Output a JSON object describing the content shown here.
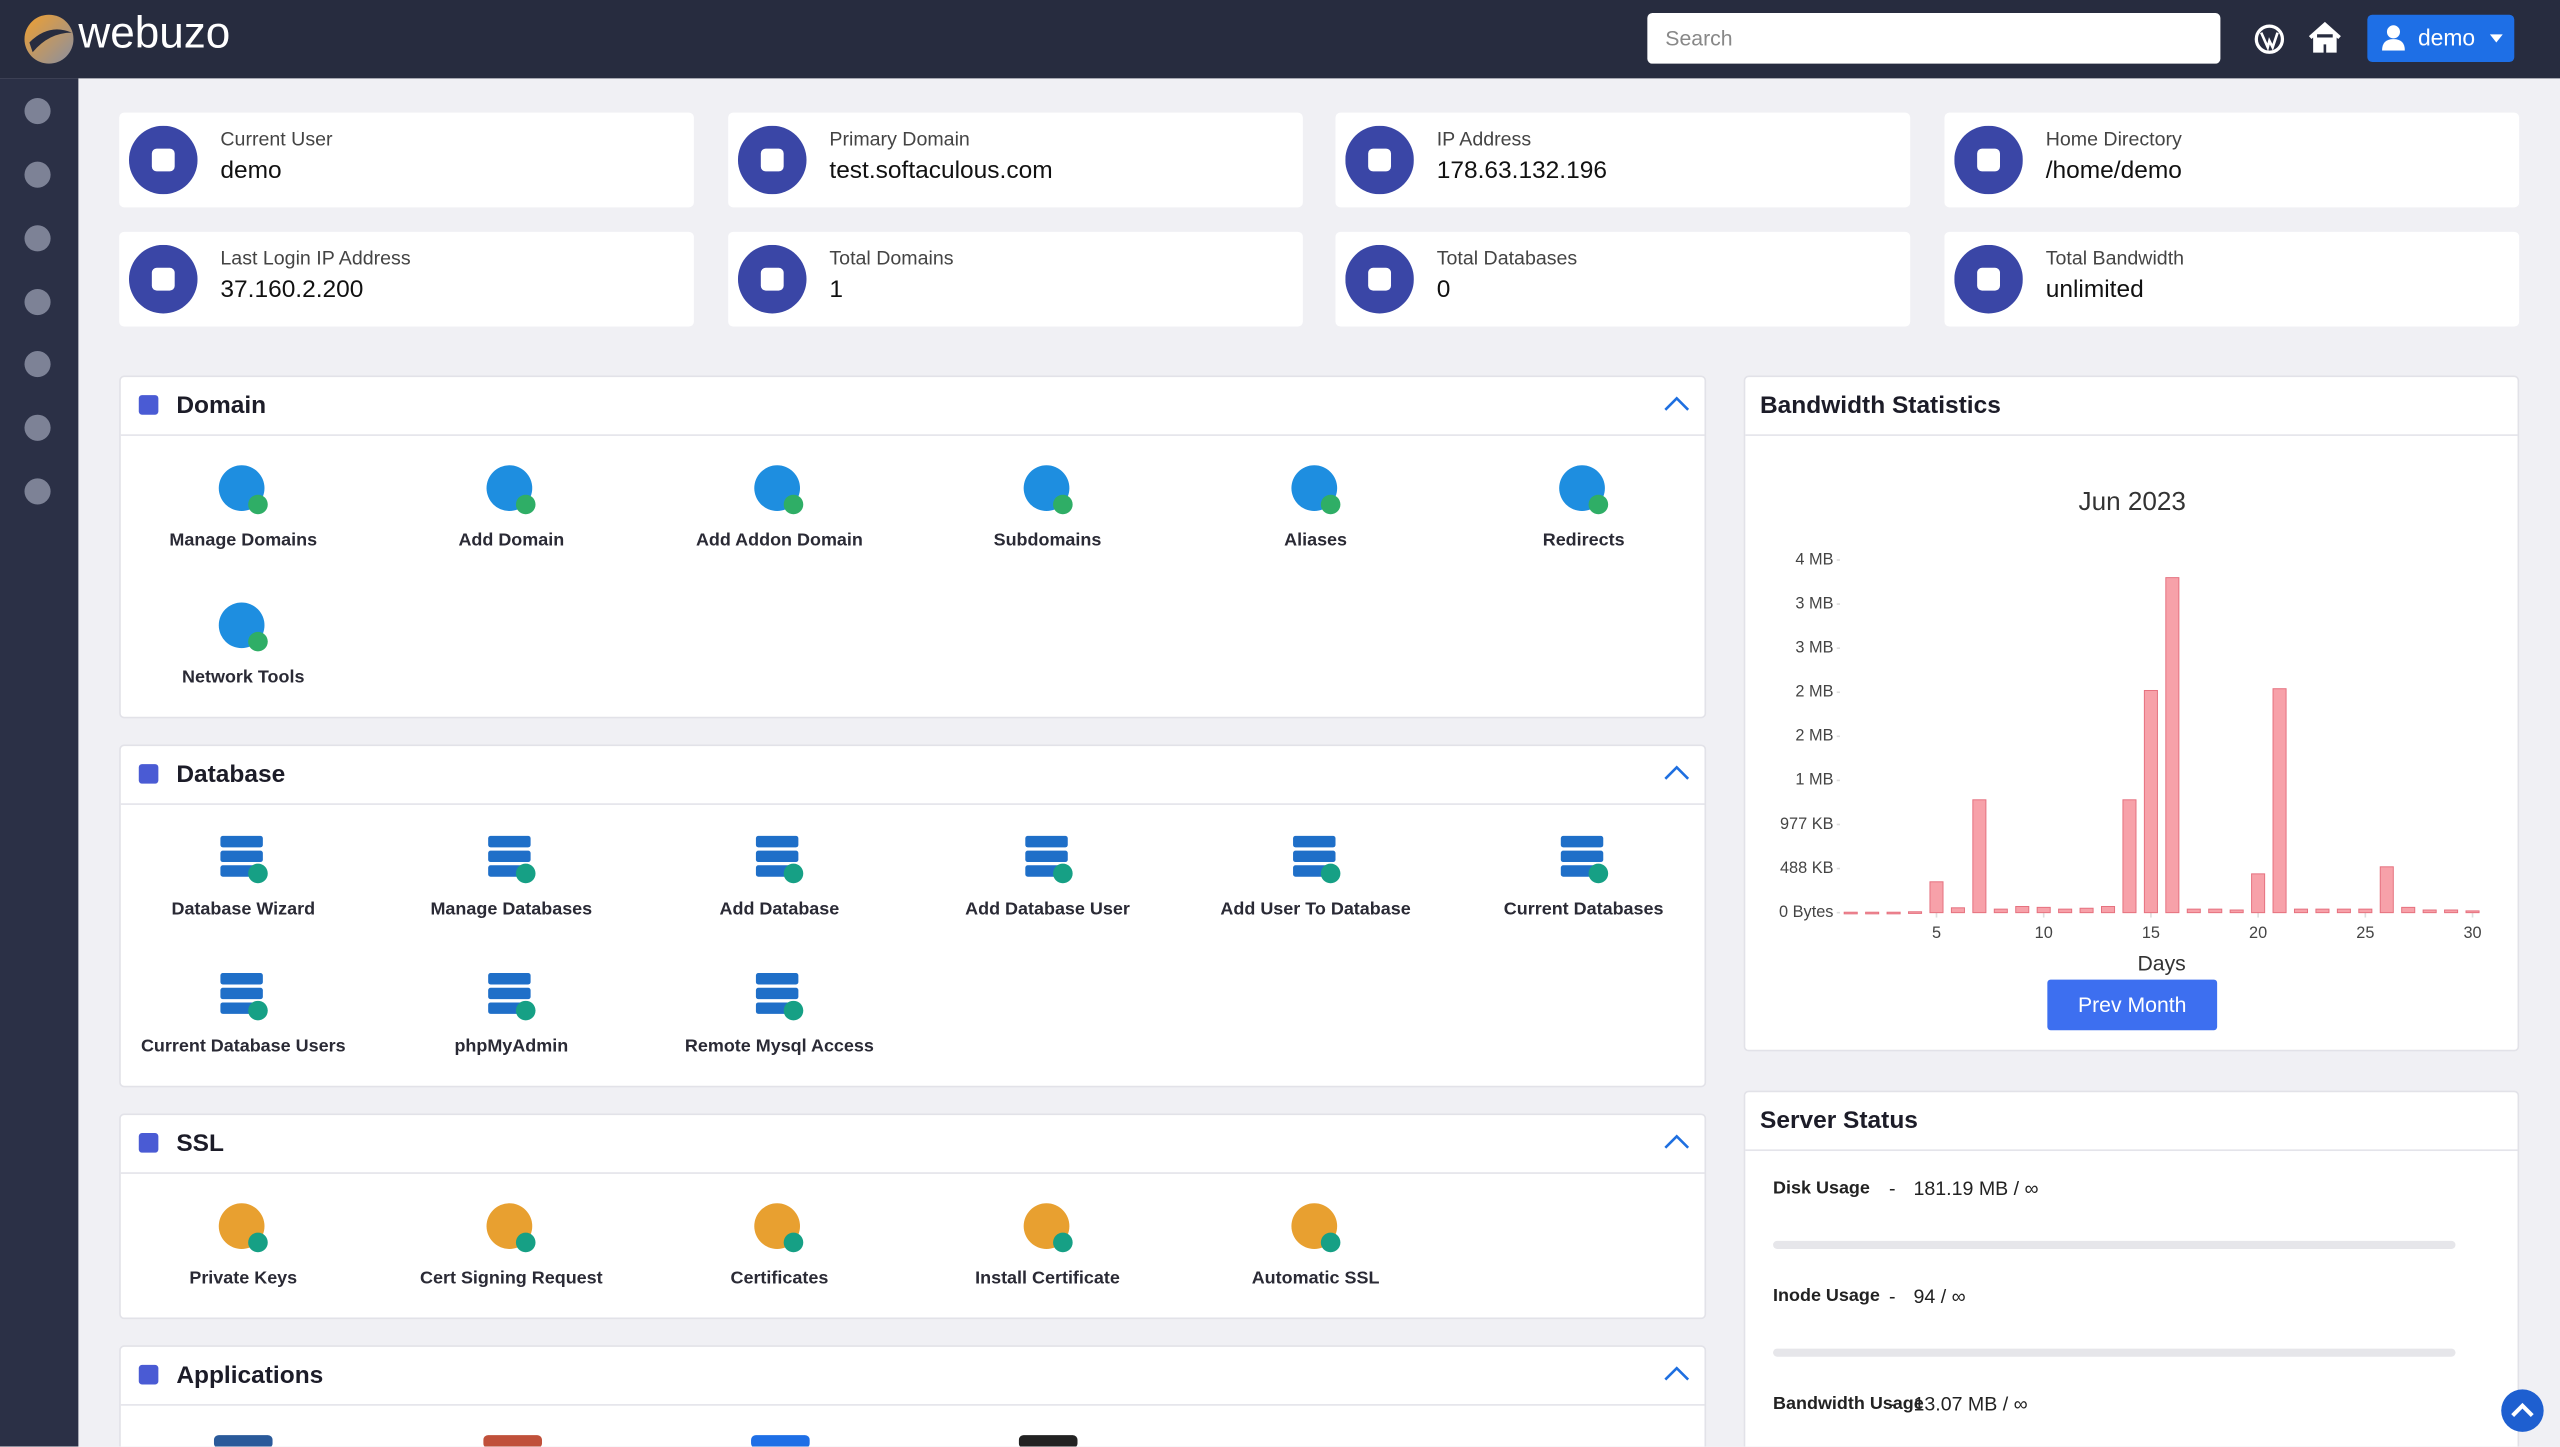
{
  "header": {
    "logo": "webuzo",
    "search_placeholder": "Search",
    "user": "demo"
  },
  "info_cards": [
    {
      "label": "Current User",
      "value": "demo"
    },
    {
      "label": "Primary Domain",
      "value": "test.softaculous.com"
    },
    {
      "label": "IP Address",
      "value": "178.63.132.196"
    },
    {
      "label": "Home Directory",
      "value": "/home/demo"
    },
    {
      "label": "Last Login IP Address",
      "value": "37.160.2.200"
    },
    {
      "label": "Total Domains",
      "value": "1"
    },
    {
      "label": "Total Databases",
      "value": "0"
    },
    {
      "label": "Total Bandwidth",
      "value": "unlimited"
    }
  ],
  "panels": [
    {
      "title": "Domain",
      "items": [
        "Manage Domains",
        "Add Domain",
        "Add Addon Domain",
        "Subdomains",
        "Aliases",
        "Redirects",
        "Network Tools"
      ]
    },
    {
      "title": "Database",
      "items": [
        "Database Wizard",
        "Manage Databases",
        "Add Database",
        "Add Database User",
        "Add User To Database",
        "Current Databases",
        "Current Database Users",
        "phpMyAdmin",
        "Remote Mysql Access"
      ]
    },
    {
      "title": "SSL",
      "items": [
        "Private Keys",
        "Cert Signing Request",
        "Certificates",
        "Install Certificate",
        "Automatic SSL"
      ]
    },
    {
      "title": "Applications",
      "items": []
    }
  ],
  "bandwidth": {
    "title": "Bandwidth Statistics",
    "button": "Prev Month"
  },
  "chart_data": {
    "type": "bar",
    "title": "Jun 2023",
    "x_label": "Days",
    "color": "#f7a1a9",
    "x": [
      1,
      2,
      3,
      4,
      5,
      6,
      7,
      8,
      9,
      10,
      11,
      12,
      13,
      14,
      15,
      16,
      17,
      18,
      19,
      20,
      21,
      22,
      23,
      24,
      25,
      26,
      27,
      28,
      29,
      30
    ],
    "values": [
      5000,
      5000,
      5000,
      10000,
      350000,
      55000,
      1280000,
      40000,
      70000,
      60000,
      40000,
      50000,
      70000,
      1280000,
      2520000,
      3800000,
      40000,
      40000,
      30000,
      440000,
      2540000,
      40000,
      40000,
      40000,
      40000,
      520000,
      60000,
      30000,
      30000,
      20000
    ],
    "xlim": [
      0.5,
      30.5
    ],
    "xticks": [
      5,
      10,
      15,
      20,
      25,
      30
    ],
    "ylim": [
      0,
      4000000
    ],
    "yticks": [
      {
        "value": 0,
        "label": "0 Bytes"
      },
      {
        "value": 500000,
        "label": "488 KB"
      },
      {
        "value": 1000000,
        "label": "977 KB"
      },
      {
        "value": 1500000,
        "label": "1 MB"
      },
      {
        "value": 2000000,
        "label": "2 MB"
      },
      {
        "value": 2500000,
        "label": "2 MB"
      },
      {
        "value": 3000000,
        "label": "3 MB"
      },
      {
        "value": 3500000,
        "label": "3 MB"
      },
      {
        "value": 4000000,
        "label": "4 MB"
      }
    ]
  },
  "server_status": {
    "title": "Server Status",
    "separator": "-",
    "items": [
      {
        "label": "Disk Usage",
        "value": "181.19 MB / ∞"
      },
      {
        "label": "Inode Usage",
        "value": "94 / ∞"
      },
      {
        "label": "Bandwidth Usage",
        "value": "13.07 MB / ∞"
      }
    ]
  }
}
